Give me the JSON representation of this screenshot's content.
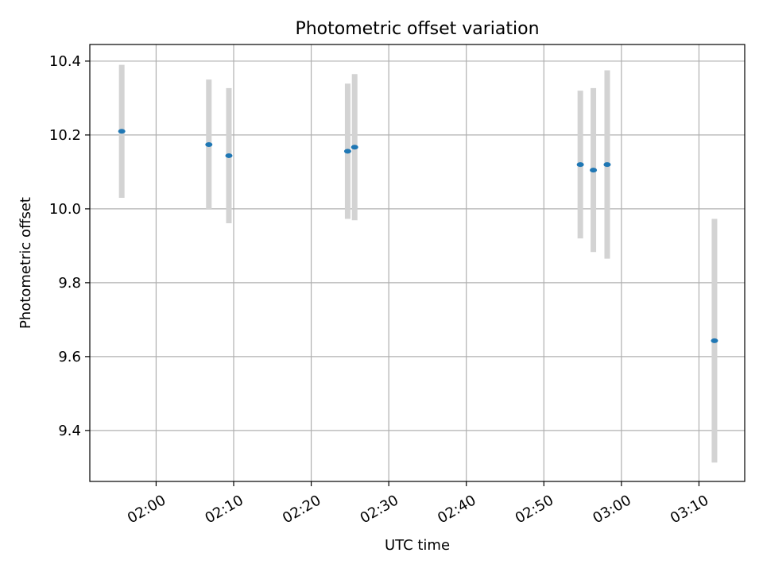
{
  "chart_data": {
    "type": "scatter",
    "title": "Photometric offset variation",
    "xlabel": "UTC time",
    "ylabel": "Photometric offset",
    "grid": true,
    "xlim": [
      "01:51:27",
      "03:15:54"
    ],
    "ylim": [
      9.262,
      10.445
    ],
    "x_ticks": [
      "02:00",
      "02:10",
      "02:20",
      "02:30",
      "02:40",
      "02:50",
      "03:00",
      "03:10"
    ],
    "y_ticks": [
      "9.4",
      "9.6",
      "9.8",
      "10.0",
      "10.2",
      "10.4"
    ],
    "colors": {
      "point": "#1f77b4",
      "errorbar": "#d3d3d3",
      "grid": "#b0b0b0",
      "axes": "#000000"
    },
    "points": [
      {
        "x": "01:55:34",
        "y": 10.21,
        "yerr": 0.18
      },
      {
        "x": "02:06:48",
        "y": 10.174,
        "yerr": 0.176
      },
      {
        "x": "02:09:23",
        "y": 10.144,
        "yerr": 0.183
      },
      {
        "x": "02:24:42",
        "y": 10.156,
        "yerr": 0.183
      },
      {
        "x": "02:25:36",
        "y": 10.167,
        "yerr": 0.198
      },
      {
        "x": "02:54:42",
        "y": 10.12,
        "yerr": 0.2
      },
      {
        "x": "02:56:23",
        "y": 10.105,
        "yerr": 0.222
      },
      {
        "x": "02:58:10",
        "y": 10.12,
        "yerr": 0.255
      },
      {
        "x": "03:12:00",
        "y": 9.643,
        "yerr": 0.33
      }
    ]
  }
}
